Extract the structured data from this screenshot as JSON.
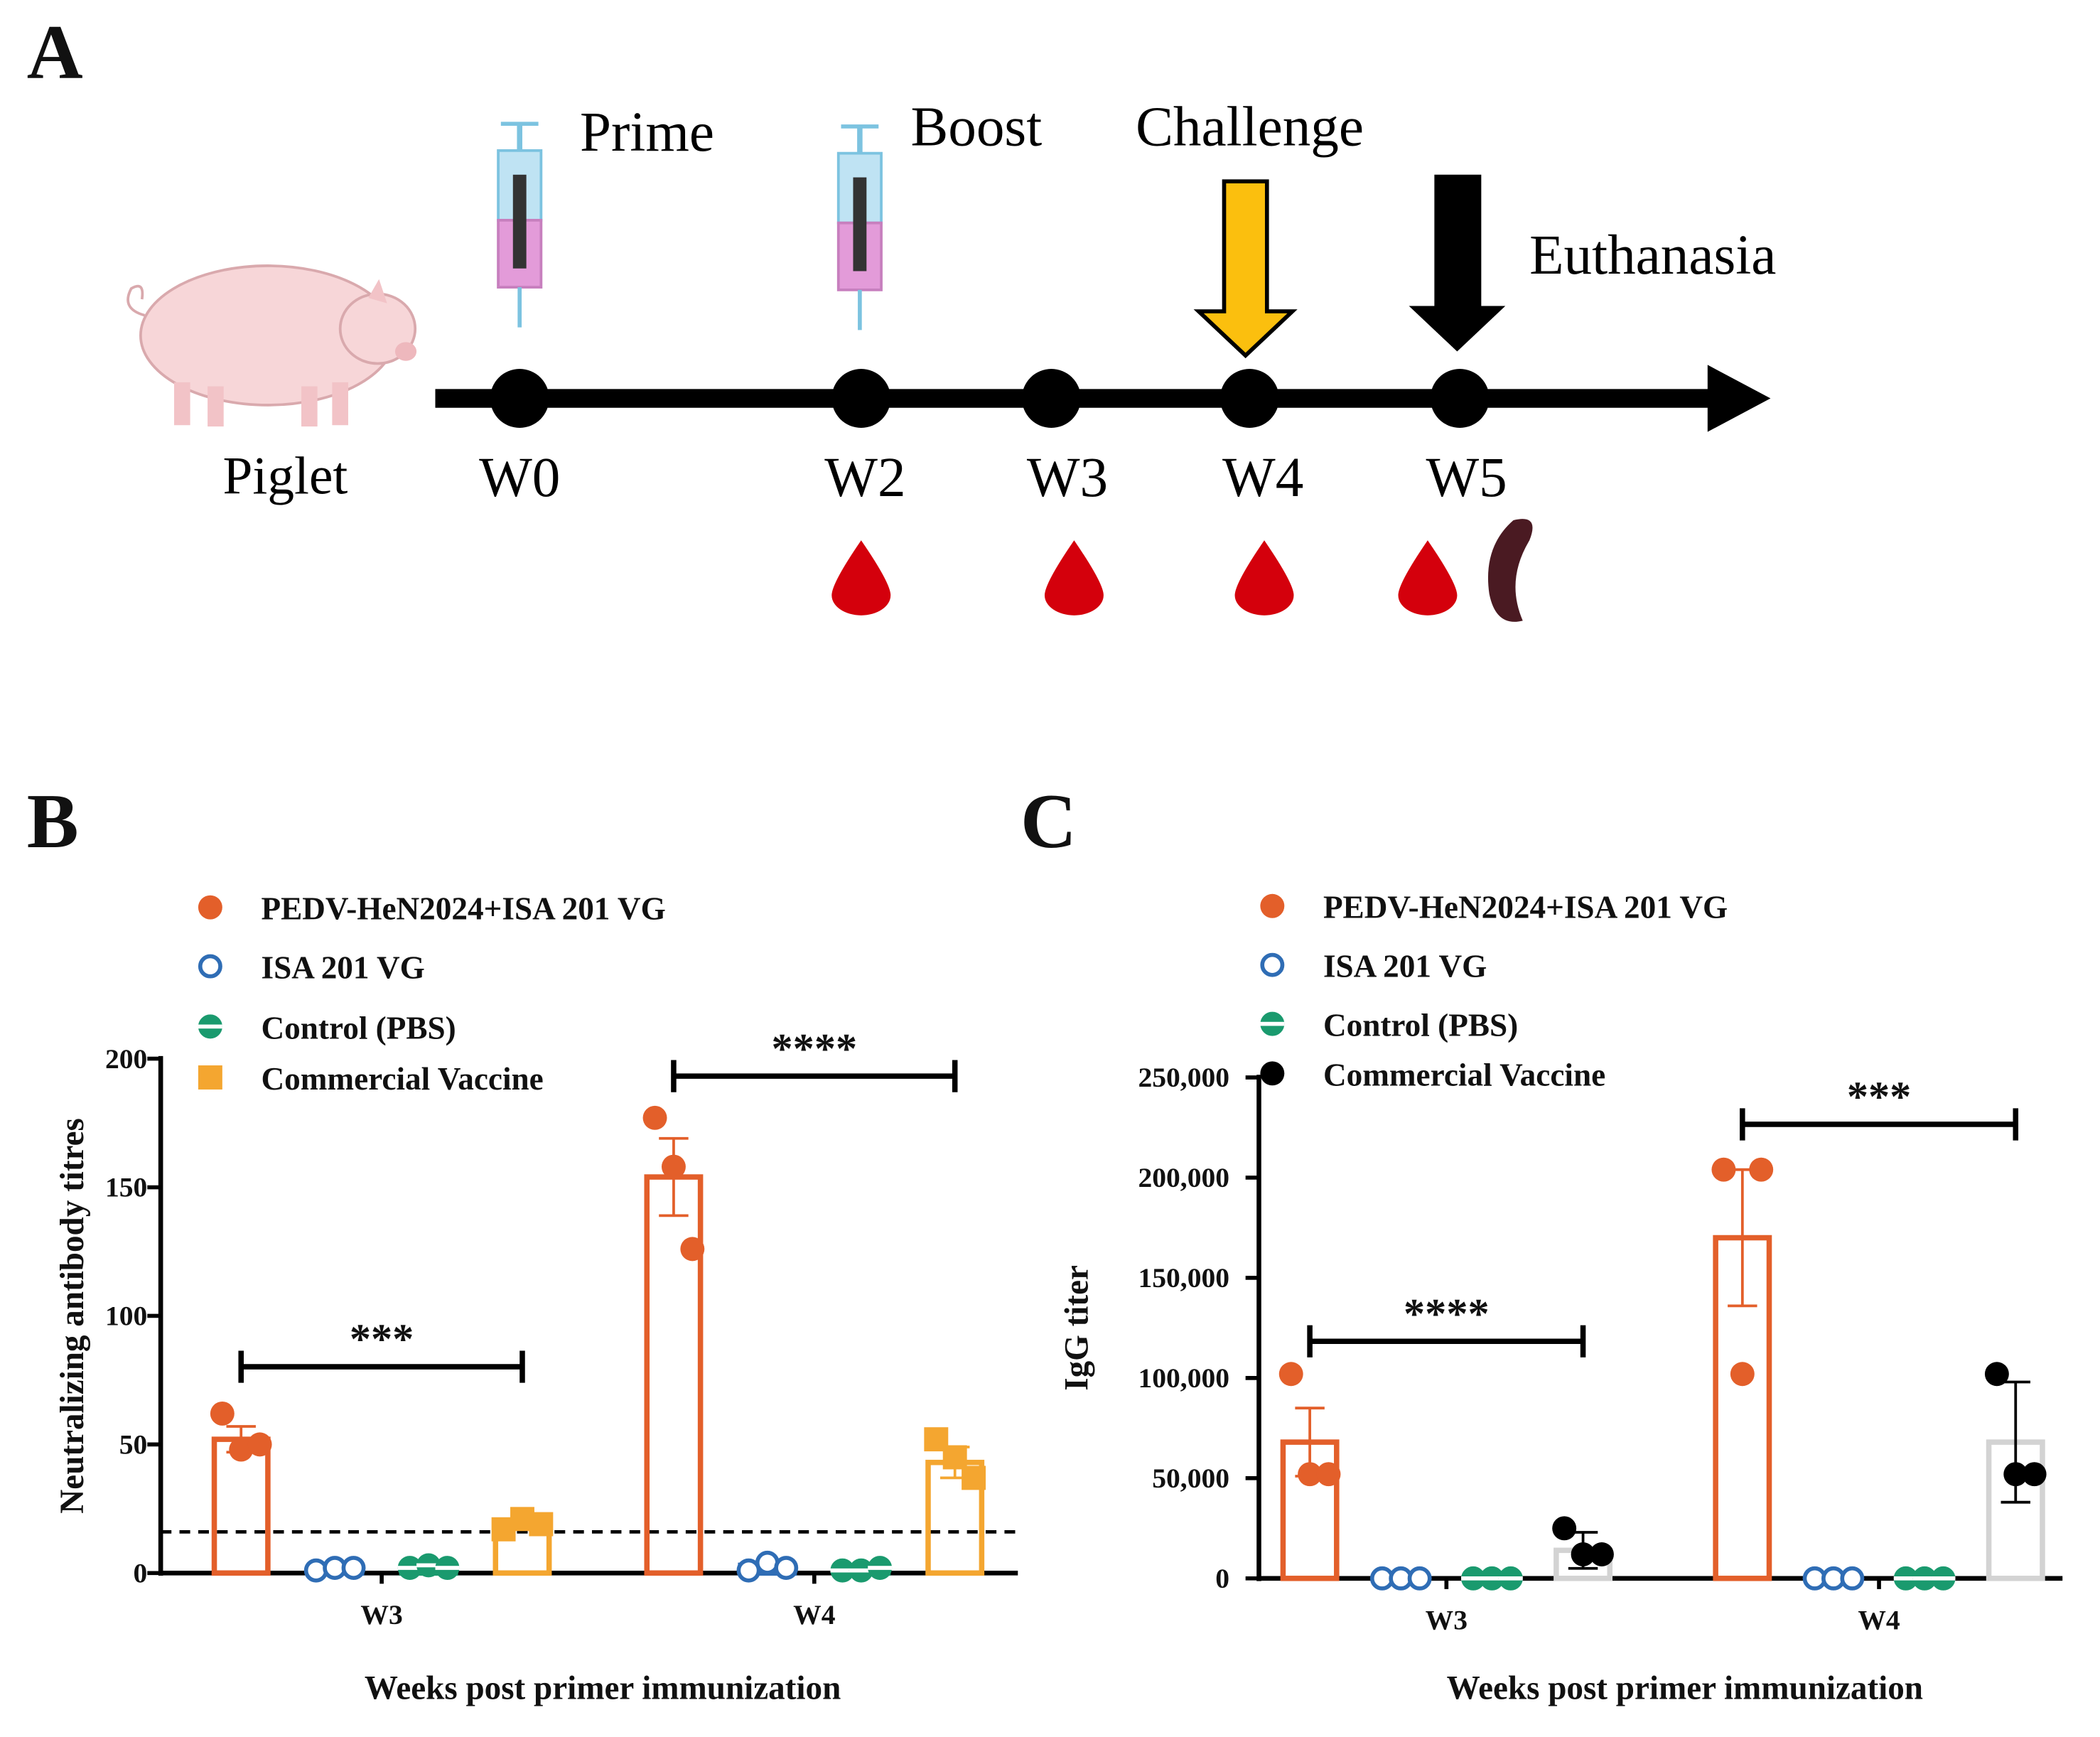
{
  "diagram": {
    "label": "A",
    "subject": "Piglet",
    "events": [
      "Prime",
      "Boost",
      "Challenge",
      "Euthanasia"
    ],
    "timepoints": [
      "W0",
      "W2",
      "W3",
      "W4",
      "W5"
    ]
  },
  "chart_data": [
    {
      "type": "bar",
      "panel": "B",
      "ylabel": "Neutralizing antibody titres",
      "xlabel": "Weeks post primer immunization",
      "categories": [
        "W3",
        "W4"
      ],
      "ylim": [
        0,
        200
      ],
      "yticks": [
        0,
        50,
        100,
        150,
        200
      ],
      "threshold": 16,
      "annotations": [
        {
          "text": "***"
        },
        {
          "text": "****"
        }
      ],
      "series": [
        {
          "name": "PEDV-HeN2024+ISA 201 VG",
          "color": "#e35f2a",
          "bar_color": "#e35f2a",
          "marker": "circle-filled",
          "values": [
            52,
            154
          ],
          "errors": [
            5,
            15
          ],
          "points": [
            [
              62,
              48,
              50
            ],
            [
              177,
              158,
              126
            ]
          ]
        },
        {
          "name": "ISA 201 VG",
          "color": "#2f6db5",
          "bar_color": "#2f6db5",
          "marker": "circle-open",
          "values": [
            2,
            3
          ],
          "errors": [
            0.5,
            1
          ],
          "points": [
            [
              1,
              2,
              2
            ],
            [
              1,
              4,
              2
            ]
          ]
        },
        {
          "name": "Control (PBS)",
          "color": "#1a9a6e",
          "bar_color": "#1a9a6e",
          "marker": "circle-half",
          "values": [
            2,
            1
          ],
          "errors": [
            0.5,
            0.5
          ],
          "points": [
            [
              2,
              3,
              2
            ],
            [
              1,
              1,
              2
            ]
          ]
        },
        {
          "name": "Commercial Vaccine",
          "color": "#f4a630",
          "bar_color": "#f4a630",
          "marker": "square",
          "values": [
            19,
            43
          ],
          "errors": [
            2,
            6
          ],
          "points": [
            [
              17,
              21,
              19
            ],
            [
              52,
              45,
              37
            ]
          ]
        }
      ]
    },
    {
      "type": "bar",
      "panel": "C",
      "ylabel": "IgG titer",
      "xlabel": "Weeks post primer immunization",
      "categories": [
        "W3",
        "W4"
      ],
      "ylim": [
        0,
        250000
      ],
      "yticks": [
        0,
        {
          "value": 50000,
          "label": "50,000"
        },
        {
          "value": 100000,
          "label": "100,000"
        },
        {
          "value": 150000,
          "label": "150,000"
        },
        {
          "value": 200000,
          "label": "200,000"
        },
        {
          "value": 250000,
          "label": "250,000"
        }
      ],
      "annotations": [
        {
          "text": "****"
        },
        {
          "text": "***"
        }
      ],
      "series": [
        {
          "name": "PEDV-HeN2024+ISA 201 VG",
          "color": "#e35f2a",
          "bar_color": "#e35f2a",
          "marker": "circle-filled",
          "values": [
            68000,
            170000
          ],
          "errors": [
            17000,
            34000
          ],
          "points": [
            [
              102000,
              52000,
              52000
            ],
            [
              204000,
              102000,
              204000
            ]
          ]
        },
        {
          "name": "ISA 201 VG",
          "color": "#2f6db5",
          "bar_color": "#2f6db5",
          "marker": "circle-open",
          "values": [
            0,
            0
          ],
          "errors": [
            0,
            0
          ],
          "points": [
            [
              0,
              0,
              0
            ],
            [
              0,
              0,
              0
            ]
          ]
        },
        {
          "name": "Control (PBS)",
          "color": "#1a9a6e",
          "bar_color": "#1a9a6e",
          "marker": "circle-half",
          "values": [
            0,
            0
          ],
          "errors": [
            0,
            0
          ],
          "points": [
            [
              0,
              0,
              0
            ],
            [
              0,
              0,
              0
            ]
          ]
        },
        {
          "name": "Commercial Vaccine",
          "color": "#000000",
          "bar_color": "#d3d3d3",
          "marker": "circle-filled",
          "values": [
            14000,
            68000
          ],
          "errors": [
            9000,
            30000
          ],
          "points": [
            [
              25000,
              12000,
              12000
            ],
            [
              102000,
              52000,
              52000
            ]
          ]
        }
      ]
    }
  ]
}
